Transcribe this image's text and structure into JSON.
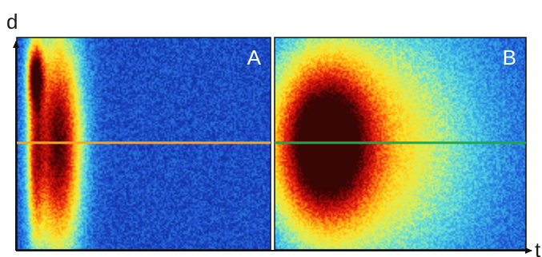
{
  "chart_data": {
    "type": "heatmap",
    "axes": {
      "x_label": "t",
      "y_label": "d"
    },
    "colormap": [
      "#0b1f8a",
      "#1f4fd0",
      "#2fa0e8",
      "#5fe0e0",
      "#d8f060",
      "#ffe020",
      "#ff9010",
      "#e82010",
      "#a00808",
      "#3a0505"
    ],
    "colors": {
      "panel_a_line": "#f5a623",
      "panel_b_line": "#1fa84a"
    },
    "panels": [
      {
        "label": "A",
        "line_color": "#f5a623",
        "blobs": [
          {
            "cx": 0.16,
            "cy": 0.5,
            "sx": 0.065,
            "sy": 0.36,
            "amp": 1.0
          },
          {
            "cx": 0.07,
            "cy": 0.17,
            "sx": 0.022,
            "sy": 0.1,
            "amp": 0.72
          },
          {
            "cx": 0.07,
            "cy": 0.55,
            "sx": 0.022,
            "sy": 0.32,
            "amp": 0.5
          }
        ]
      },
      {
        "label": "B",
        "line_color": "#1fa84a",
        "blobs": [
          {
            "cx": 0.19,
            "cy": 0.5,
            "sx": 0.13,
            "sy": 0.26,
            "amp": 1.0
          },
          {
            "cx": 0.4,
            "cy": 0.5,
            "sx": 0.3,
            "sy": 0.44,
            "amp": 0.5
          }
        ]
      }
    ]
  }
}
